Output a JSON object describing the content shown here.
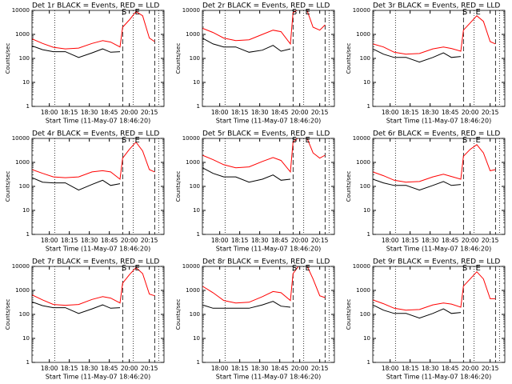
{
  "chart_data": [
    {
      "type": "line",
      "title": "Det 1r BLACK = Events, RED = LLD",
      "ylabel": "Counts/sec",
      "xlabel": "Start Time (11-May-07 18:46:20)",
      "log_scale": true,
      "x": [
        "17:47",
        "17:55",
        "18:03",
        "18:12",
        "18:22",
        "18:32",
        "18:40",
        "18:46",
        "18:53",
        "18:55",
        "19:00",
        "19:05",
        "19:10",
        "19:15",
        "19:19"
      ],
      "xlim": [
        "17:47",
        "19:26"
      ],
      "xticks": [
        "18:00",
        "18:15",
        "18:30",
        "18:45",
        {
          "value": "19:00",
          "label": "20:00"
        },
        {
          "value": "19:15",
          "label": "20:15"
        }
      ],
      "ylim": [
        1,
        10000
      ],
      "yticks": [
        1,
        10,
        100,
        1000,
        10000
      ],
      "series": [
        {
          "color": "#000000",
          "values": [
            330,
            230,
            190,
            190,
            110,
            170,
            250,
            180,
            190,
            null,
            null,
            null,
            null,
            null,
            null
          ]
        },
        {
          "color": "#ff0000",
          "values": [
            650,
            420,
            290,
            250,
            270,
            420,
            550,
            480,
            300,
            2000,
            4000,
            9000,
            6000,
            700,
            500
          ]
        }
      ],
      "markers": [
        {
          "x": "18:04",
          "style": "dotted"
        },
        {
          "x": "18:55",
          "style": "dashed"
        },
        {
          "x": "19:03",
          "style": "dotted"
        },
        {
          "x": "19:19",
          "style": "dashed"
        },
        {
          "x": "19:22",
          "style": "dotted"
        }
      ],
      "annotations": [
        {
          "text": "S",
          "x": "18:56"
        },
        {
          "text": "E",
          "x": "19:06"
        }
      ]
    },
    {
      "type": "line",
      "title": "Det 2r BLACK = Events, RED = LLD",
      "ylabel": "Counts/sec",
      "xlabel": "Start Time (11-May-07 18:46:20)",
      "log_scale": true,
      "x": [
        "17:47",
        "17:55",
        "18:03",
        "18:12",
        "18:22",
        "18:32",
        "18:40",
        "18:46",
        "18:53",
        "18:55",
        "19:00",
        "19:05",
        "19:10",
        "19:15",
        "19:19"
      ],
      "xlim": [
        "17:47",
        "19:26"
      ],
      "xticks": [
        "18:00",
        "18:15",
        "18:30",
        "18:45",
        {
          "value": "19:00",
          "label": "20:00"
        },
        {
          "value": "19:15",
          "label": "20:15"
        }
      ],
      "ylim": [
        1,
        10000
      ],
      "yticks": [
        1,
        10,
        100,
        1000,
        10000
      ],
      "series": [
        {
          "color": "#000000",
          "values": [
            700,
            400,
            300,
            300,
            180,
            220,
            350,
            200,
            250,
            null,
            null,
            null,
            null,
            null,
            null
          ]
        },
        {
          "color": "#ff0000",
          "values": [
            1800,
            1200,
            700,
            550,
            600,
            1000,
            1500,
            1300,
            400,
            8000,
            12000,
            12000,
            2000,
            1500,
            2500
          ]
        }
      ],
      "markers": [
        {
          "x": "18:04",
          "style": "dotted"
        },
        {
          "x": "18:55",
          "style": "dashed"
        },
        {
          "x": "19:03",
          "style": "dotted"
        },
        {
          "x": "19:19",
          "style": "dashed"
        },
        {
          "x": "19:22",
          "style": "dotted"
        }
      ],
      "annotations": [
        {
          "text": "S",
          "x": "18:56"
        },
        {
          "text": "E",
          "x": "19:06"
        }
      ]
    },
    {
      "type": "line",
      "title": "Det 3r BLACK = Events, RED = LLD",
      "ylabel": "Counts/sec",
      "xlabel": "Start Time (11-May-07 18:46:20)",
      "log_scale": true,
      "x": [
        "17:47",
        "17:55",
        "18:03",
        "18:12",
        "18:22",
        "18:32",
        "18:40",
        "18:46",
        "18:53",
        "18:55",
        "19:00",
        "19:05",
        "19:10",
        "19:15",
        "19:19"
      ],
      "xlim": [
        "17:47",
        "19:26"
      ],
      "xticks": [
        "18:00",
        "18:15",
        "18:30",
        "18:45",
        {
          "value": "19:00",
          "label": "20:00"
        },
        {
          "value": "19:15",
          "label": "20:15"
        }
      ],
      "ylim": [
        1,
        10000
      ],
      "yticks": [
        1,
        10,
        100,
        1000,
        10000
      ],
      "series": [
        {
          "color": "#000000",
          "values": [
            250,
            150,
            110,
            110,
            70,
            110,
            170,
            110,
            120,
            null,
            null,
            null,
            null,
            null,
            null
          ]
        },
        {
          "color": "#ff0000",
          "values": [
            400,
            300,
            180,
            150,
            160,
            250,
            300,
            260,
            200,
            1500,
            3000,
            6000,
            3500,
            500,
            400
          ]
        }
      ],
      "markers": [
        {
          "x": "18:04",
          "style": "dotted"
        },
        {
          "x": "18:55",
          "style": "dashed"
        },
        {
          "x": "19:03",
          "style": "dotted"
        },
        {
          "x": "19:19",
          "style": "dashed"
        },
        {
          "x": "19:22",
          "style": "dotted"
        }
      ],
      "annotations": [
        {
          "text": "S",
          "x": "18:56"
        },
        {
          "text": "E",
          "x": "19:06"
        }
      ]
    },
    {
      "type": "line",
      "title": "Det 4r BLACK = Events, RED = LLD",
      "ylabel": "Counts/sec",
      "xlabel": "Start Time (11-May-07 18:46:20)",
      "log_scale": true,
      "x": [
        "17:47",
        "17:55",
        "18:03",
        "18:12",
        "18:22",
        "18:32",
        "18:40",
        "18:46",
        "18:53",
        "18:55",
        "19:00",
        "19:05",
        "19:10",
        "19:15",
        "19:19"
      ],
      "xlim": [
        "17:47",
        "19:26"
      ],
      "xticks": [
        "18:00",
        "18:15",
        "18:30",
        "18:45",
        {
          "value": "19:00",
          "label": "20:00"
        },
        {
          "value": "19:15",
          "label": "20:15"
        }
      ],
      "ylim": [
        1,
        10000
      ],
      "yticks": [
        1,
        10,
        100,
        1000,
        10000
      ],
      "series": [
        {
          "color": "#000000",
          "values": [
            230,
            150,
            140,
            140,
            70,
            120,
            180,
            110,
            130,
            null,
            null,
            null,
            null,
            null,
            null
          ]
        },
        {
          "color": "#ff0000",
          "values": [
            500,
            350,
            250,
            230,
            250,
            400,
            450,
            400,
            200,
            1500,
            3500,
            7000,
            3000,
            500,
            400
          ]
        }
      ],
      "markers": [
        {
          "x": "18:04",
          "style": "dotted"
        },
        {
          "x": "18:55",
          "style": "dashed"
        },
        {
          "x": "19:03",
          "style": "dotted"
        },
        {
          "x": "19:19",
          "style": "dashed"
        },
        {
          "x": "19:22",
          "style": "dotted"
        }
      ],
      "annotations": [
        {
          "text": "S",
          "x": "18:56"
        },
        {
          "text": "E",
          "x": "19:06"
        }
      ]
    },
    {
      "type": "line",
      "title": "Det 5r BLACK = Events, RED = LLD",
      "ylabel": "Counts/sec",
      "xlabel": "Start Time (11-May-07 18:46:20)",
      "log_scale": true,
      "x": [
        "17:47",
        "17:55",
        "18:03",
        "18:12",
        "18:22",
        "18:32",
        "18:40",
        "18:46",
        "18:53",
        "18:55",
        "19:00",
        "19:05",
        "19:10",
        "19:15",
        "19:19"
      ],
      "xlim": [
        "17:47",
        "19:26"
      ],
      "xticks": [
        "18:00",
        "18:15",
        "18:30",
        "18:45",
        {
          "value": "19:00",
          "label": "20:00"
        },
        {
          "value": "19:15",
          "label": "20:15"
        }
      ],
      "ylim": [
        1,
        10000
      ],
      "yticks": [
        1,
        10,
        100,
        1000,
        10000
      ],
      "series": [
        {
          "color": "#000000",
          "values": [
            600,
            350,
            250,
            250,
            150,
            200,
            300,
            180,
            200,
            null,
            null,
            null,
            null,
            null,
            null
          ]
        },
        {
          "color": "#ff0000",
          "values": [
            2000,
            1300,
            800,
            600,
            650,
            1100,
            1600,
            1200,
            400,
            7000,
            12000,
            12000,
            2500,
            1500,
            2000
          ]
        }
      ],
      "markers": [
        {
          "x": "18:04",
          "style": "dotted"
        },
        {
          "x": "18:55",
          "style": "dashed"
        },
        {
          "x": "19:03",
          "style": "dotted"
        },
        {
          "x": "19:19",
          "style": "dashed"
        },
        {
          "x": "19:22",
          "style": "dotted"
        }
      ],
      "annotations": [
        {
          "text": "S",
          "x": "18:56"
        },
        {
          "text": "E",
          "x": "19:06"
        }
      ]
    },
    {
      "type": "line",
      "title": "Det 6r BLACK = Events, RED = LLD",
      "ylabel": "Counts/sec",
      "xlabel": "Start Time (11-May-07 18:46:20)",
      "log_scale": true,
      "x": [
        "17:47",
        "17:55",
        "18:03",
        "18:12",
        "18:22",
        "18:32",
        "18:40",
        "18:46",
        "18:53",
        "18:55",
        "19:00",
        "19:05",
        "19:10",
        "19:15",
        "19:19"
      ],
      "xlim": [
        "17:47",
        "19:26"
      ],
      "xticks": [
        "18:00",
        "18:15",
        "18:30",
        "18:45",
        {
          "value": "19:00",
          "label": "20:00"
        },
        {
          "value": "19:15",
          "label": "20:15"
        }
      ],
      "ylim": [
        1,
        10000
      ],
      "yticks": [
        1,
        10,
        100,
        1000,
        10000
      ],
      "series": [
        {
          "color": "#000000",
          "values": [
            200,
            140,
            110,
            110,
            70,
            110,
            160,
            110,
            120,
            null,
            null,
            null,
            null,
            null,
            null
          ]
        },
        {
          "color": "#ff0000",
          "values": [
            400,
            280,
            180,
            150,
            160,
            250,
            320,
            260,
            200,
            1800,
            3500,
            5500,
            2500,
            450,
            500
          ]
        }
      ],
      "markers": [
        {
          "x": "18:04",
          "style": "dotted"
        },
        {
          "x": "18:55",
          "style": "dashed"
        },
        {
          "x": "19:03",
          "style": "dotted"
        },
        {
          "x": "19:19",
          "style": "dashed"
        },
        {
          "x": "19:22",
          "style": "dotted"
        }
      ],
      "annotations": [
        {
          "text": "S",
          "x": "18:56"
        },
        {
          "text": "E",
          "x": "19:06"
        }
      ]
    },
    {
      "type": "line",
      "title": "Det 7r BLACK = Events, RED = LLD",
      "ylabel": "Counts/sec",
      "xlabel": "Start Time (11-May-07 18:46:20)",
      "log_scale": true,
      "x": [
        "17:47",
        "17:55",
        "18:03",
        "18:12",
        "18:22",
        "18:32",
        "18:40",
        "18:46",
        "18:53",
        "18:55",
        "19:00",
        "19:05",
        "19:10",
        "19:15",
        "19:19"
      ],
      "xlim": [
        "17:47",
        "19:26"
      ],
      "xticks": [
        "18:00",
        "18:15",
        "18:30",
        "18:45",
        {
          "value": "19:00",
          "label": "20:00"
        },
        {
          "value": "19:15",
          "label": "20:15"
        }
      ],
      "ylim": [
        1,
        10000
      ],
      "yticks": [
        1,
        10,
        100,
        1000,
        10000
      ],
      "series": [
        {
          "color": "#000000",
          "values": [
            330,
            230,
            190,
            190,
            110,
            170,
            250,
            180,
            190,
            null,
            null,
            null,
            null,
            null,
            null
          ]
        },
        {
          "color": "#ff0000",
          "values": [
            650,
            400,
            260,
            240,
            260,
            420,
            550,
            480,
            300,
            2000,
            4500,
            9000,
            5000,
            700,
            600
          ]
        }
      ],
      "markers": [
        {
          "x": "18:04",
          "style": "dotted"
        },
        {
          "x": "18:55",
          "style": "dashed"
        },
        {
          "x": "19:03",
          "style": "dotted"
        },
        {
          "x": "19:19",
          "style": "dashed"
        },
        {
          "x": "19:22",
          "style": "dotted"
        }
      ],
      "annotations": [
        {
          "text": "S",
          "x": "18:56"
        },
        {
          "text": "E",
          "x": "19:06"
        }
      ]
    },
    {
      "type": "line",
      "title": "Det 8r BLACK = Events, RED = LLD",
      "ylabel": "Counts/sec",
      "xlabel": "Start Time (11-May-07 18:46:20)",
      "log_scale": true,
      "x": [
        "17:47",
        "17:55",
        "18:03",
        "18:12",
        "18:22",
        "18:32",
        "18:40",
        "18:46",
        "18:53",
        "18:55",
        "19:00",
        "19:05",
        "19:10",
        "19:15",
        "19:19"
      ],
      "xlim": [
        "17:47",
        "19:26"
      ],
      "xticks": [
        "18:00",
        "18:15",
        "18:30",
        "18:45",
        {
          "value": "19:00",
          "label": "20:00"
        },
        {
          "value": "19:15",
          "label": "20:15"
        }
      ],
      "ylim": [
        1,
        10000
      ],
      "yticks": [
        1,
        10,
        100,
        1000,
        10000
      ],
      "series": [
        {
          "color": "#000000",
          "values": [
            250,
            180,
            180,
            180,
            180,
            250,
            350,
            220,
            200,
            null,
            null,
            null,
            null,
            null,
            null
          ]
        },
        {
          "color": "#ff0000",
          "values": [
            1500,
            800,
            380,
            300,
            320,
            550,
            900,
            800,
            380,
            5000,
            12000,
            12000,
            3000,
            600,
            500
          ]
        }
      ],
      "markers": [
        {
          "x": "18:04",
          "style": "dotted"
        },
        {
          "x": "18:55",
          "style": "dashed"
        },
        {
          "x": "19:03",
          "style": "dotted"
        },
        {
          "x": "19:19",
          "style": "dashed"
        },
        {
          "x": "19:22",
          "style": "dotted"
        }
      ],
      "annotations": [
        {
          "text": "S",
          "x": "18:56"
        },
        {
          "text": "E",
          "x": "19:06"
        }
      ]
    },
    {
      "type": "line",
      "title": "Det 9r BLACK = Events, RED = LLD",
      "ylabel": "Counts/sec",
      "xlabel": "Start Time (11-May-07 18:46:20)",
      "log_scale": true,
      "x": [
        "17:47",
        "17:55",
        "18:03",
        "18:12",
        "18:22",
        "18:32",
        "18:40",
        "18:46",
        "18:53",
        "18:55",
        "19:00",
        "19:05",
        "19:10",
        "19:15",
        "19:19"
      ],
      "xlim": [
        "17:47",
        "19:26"
      ],
      "xticks": [
        "18:00",
        "18:15",
        "18:30",
        "18:45",
        {
          "value": "19:00",
          "label": "20:00"
        },
        {
          "value": "19:15",
          "label": "20:15"
        }
      ],
      "ylim": [
        1,
        10000
      ],
      "yticks": [
        1,
        10,
        100,
        1000,
        10000
      ],
      "series": [
        {
          "color": "#000000",
          "values": [
            250,
            150,
            110,
            110,
            70,
            110,
            170,
            110,
            120,
            null,
            null,
            null,
            null,
            null,
            null
          ]
        },
        {
          "color": "#ff0000",
          "values": [
            400,
            280,
            180,
            150,
            160,
            250,
            300,
            270,
            200,
            1500,
            3000,
            6000,
            3000,
            450,
            450
          ]
        }
      ],
      "markers": [
        {
          "x": "18:04",
          "style": "dotted"
        },
        {
          "x": "18:55",
          "style": "dashed"
        },
        {
          "x": "19:03",
          "style": "dotted"
        },
        {
          "x": "19:19",
          "style": "dashed"
        },
        {
          "x": "19:22",
          "style": "dotted"
        }
      ],
      "annotations": [
        {
          "text": "S",
          "x": "18:56"
        },
        {
          "text": "E",
          "x": "19:06"
        }
      ]
    }
  ]
}
